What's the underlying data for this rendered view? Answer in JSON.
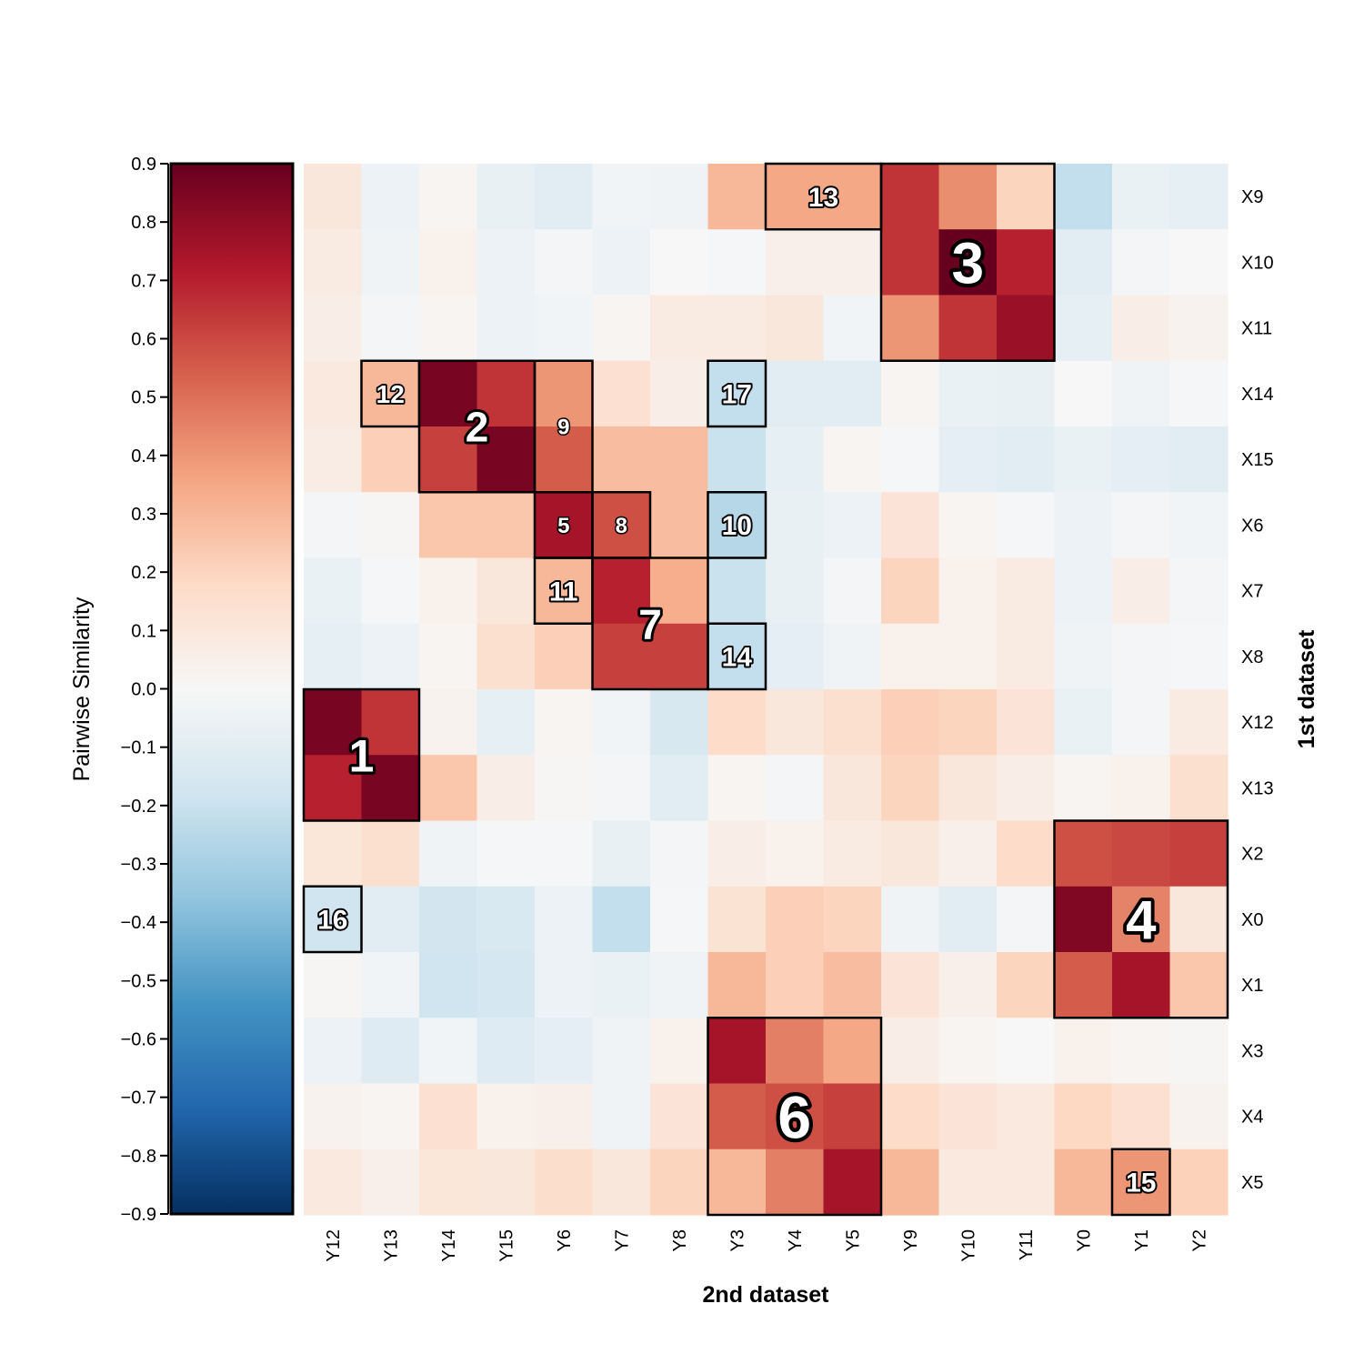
{
  "chart_data": {
    "type": "heatmap",
    "title": "",
    "xlabel": "2nd dataset",
    "ylabel": "1st dataset",
    "colorbar_label": "Pairwise Similarity",
    "vmin": -0.9,
    "vmax": 0.9,
    "colorbar_ticks": [
      "0.9",
      "0.8",
      "0.7",
      "0.6",
      "0.5",
      "0.4",
      "0.3",
      "0.2",
      "0.1",
      "0.0",
      "−0.1",
      "−0.2",
      "−0.3",
      "−0.4",
      "−0.5",
      "−0.6",
      "−0.7",
      "−0.8",
      "−0.9"
    ],
    "colors": {
      "scale": [
        "#053061",
        "#2166ac",
        "#4393c3",
        "#92c5de",
        "#d1e5f0",
        "#f7f7f7",
        "#fddbc7",
        "#f4a582",
        "#d6604d",
        "#b2182b",
        "#67001f"
      ]
    },
    "columns": [
      "Y12",
      "Y13",
      "Y14",
      "Y15",
      "Y6",
      "Y7",
      "Y8",
      "Y3",
      "Y4",
      "Y5",
      "Y9",
      "Y10",
      "Y11",
      "Y0",
      "Y1",
      "Y2"
    ],
    "rows": [
      "X9",
      "X10",
      "X11",
      "X14",
      "X15",
      "X6",
      "X7",
      "X8",
      "X12",
      "X13",
      "X2",
      "X0",
      "X1",
      "X3",
      "X4",
      "X5"
    ],
    "values": [
      [
        0.1,
        -0.05,
        0.02,
        -0.07,
        -0.1,
        -0.03,
        -0.04,
        0.3,
        0.35,
        0.35,
        0.65,
        0.42,
        0.2,
        -0.22,
        -0.06,
        -0.08
      ],
      [
        0.08,
        -0.04,
        0.04,
        -0.05,
        -0.02,
        -0.05,
        0.0,
        -0.01,
        0.05,
        0.05,
        0.65,
        0.9,
        0.7,
        -0.1,
        -0.02,
        0.0
      ],
      [
        0.06,
        -0.02,
        0.02,
        -0.05,
        -0.03,
        0.02,
        0.08,
        0.08,
        0.1,
        -0.03,
        0.4,
        0.65,
        0.78,
        -0.08,
        0.06,
        0.03
      ],
      [
        0.09,
        0.3,
        0.86,
        0.65,
        0.4,
        0.14,
        0.06,
        -0.22,
        -0.1,
        -0.1,
        0.02,
        -0.06,
        -0.07,
        0.0,
        -0.04,
        -0.01
      ],
      [
        0.07,
        0.22,
        0.62,
        0.86,
        0.55,
        0.28,
        0.28,
        -0.2,
        -0.08,
        0.02,
        -0.01,
        -0.09,
        -0.1,
        -0.06,
        -0.09,
        -0.1
      ],
      [
        -0.02,
        0.01,
        0.25,
        0.25,
        0.75,
        0.58,
        0.28,
        -0.26,
        -0.07,
        -0.05,
        0.12,
        0.02,
        -0.01,
        -0.05,
        -0.02,
        -0.03
      ],
      [
        -0.06,
        -0.01,
        0.04,
        0.1,
        0.3,
        0.7,
        0.33,
        -0.2,
        -0.07,
        -0.02,
        0.2,
        0.04,
        0.08,
        -0.05,
        0.06,
        -0.02
      ],
      [
        -0.08,
        -0.05,
        0.02,
        0.15,
        0.22,
        0.62,
        0.62,
        -0.22,
        -0.09,
        -0.04,
        0.04,
        0.04,
        0.08,
        -0.04,
        -0.02,
        -0.01
      ],
      [
        0.86,
        0.65,
        0.03,
        -0.08,
        0.02,
        -0.03,
        -0.15,
        0.17,
        0.1,
        0.15,
        0.22,
        0.2,
        0.12,
        -0.06,
        -0.02,
        0.08
      ],
      [
        0.7,
        0.86,
        0.25,
        0.06,
        0.01,
        -0.02,
        -0.1,
        0.02,
        -0.02,
        0.1,
        0.2,
        0.1,
        0.06,
        0.02,
        0.04,
        0.15
      ],
      [
        0.11,
        0.15,
        -0.04,
        -0.01,
        -0.01,
        -0.07,
        -0.02,
        0.06,
        0.04,
        0.08,
        0.1,
        0.05,
        0.17,
        0.58,
        0.6,
        0.62
      ],
      [
        -0.18,
        -0.1,
        -0.17,
        -0.14,
        -0.05,
        -0.22,
        -0.01,
        0.13,
        0.22,
        0.2,
        -0.04,
        -0.1,
        -0.02,
        0.84,
        0.45,
        0.1
      ],
      [
        0.01,
        -0.03,
        -0.18,
        -0.16,
        -0.05,
        -0.06,
        -0.04,
        0.3,
        0.22,
        0.28,
        0.12,
        0.05,
        0.2,
        0.55,
        0.75,
        0.25
      ],
      [
        -0.05,
        -0.12,
        -0.03,
        -0.12,
        -0.09,
        -0.04,
        0.04,
        0.75,
        0.46,
        0.35,
        0.06,
        0.02,
        0.0,
        0.04,
        0.02,
        0.01
      ],
      [
        0.03,
        0.02,
        0.14,
        0.04,
        0.05,
        -0.04,
        0.12,
        0.55,
        0.58,
        0.62,
        0.17,
        0.12,
        0.09,
        0.19,
        0.14,
        0.03
      ],
      [
        0.09,
        0.05,
        0.11,
        0.1,
        0.16,
        0.1,
        0.2,
        0.3,
        0.46,
        0.75,
        0.3,
        0.09,
        0.09,
        0.3,
        0.4,
        0.21
      ]
    ],
    "clusters": [
      {
        "label": "1",
        "r0": 8,
        "r1": 10,
        "c0": 0,
        "c1": 2,
        "size": 50
      },
      {
        "label": "2",
        "r0": 3,
        "r1": 5,
        "c0": 2,
        "c1": 4,
        "size": 46
      },
      {
        "label": "3",
        "r0": 0,
        "r1": 3,
        "c0": 10,
        "c1": 13,
        "size": 64
      },
      {
        "label": "4",
        "r0": 10,
        "r1": 13,
        "c0": 13,
        "c1": 16,
        "size": 60
      },
      {
        "label": "5",
        "r0": 5,
        "r1": 6,
        "c0": 4,
        "c1": 5,
        "size": 24
      },
      {
        "label": "6",
        "r0": 13,
        "r1": 16,
        "c0": 7,
        "c1": 10,
        "size": 66
      },
      {
        "label": "7",
        "r0": 6,
        "r1": 8,
        "c0": 5,
        "c1": 7,
        "size": 46
      },
      {
        "label": "8",
        "r0": 5,
        "r1": 6,
        "c0": 5,
        "c1": 6,
        "size": 24
      },
      {
        "label": "9",
        "r0": 3,
        "r1": 5,
        "c0": 4,
        "c1": 5,
        "size": 24
      },
      {
        "label": "10",
        "r0": 5,
        "r1": 6,
        "c0": 7,
        "c1": 8,
        "size": 30
      },
      {
        "label": "11",
        "r0": 6,
        "r1": 7,
        "c0": 4,
        "c1": 5,
        "size": 30
      },
      {
        "label": "12",
        "r0": 3,
        "r1": 4,
        "c0": 1,
        "c1": 2,
        "size": 28
      },
      {
        "label": "13",
        "r0": 0,
        "r1": 1,
        "c0": 8,
        "c1": 10,
        "size": 30
      },
      {
        "label": "14",
        "r0": 7,
        "r1": 8,
        "c0": 7,
        "c1": 8,
        "size": 30
      },
      {
        "label": "15",
        "r0": 15,
        "r1": 16,
        "c0": 14,
        "c1": 15,
        "size": 30
      },
      {
        "label": "16",
        "r0": 11,
        "r1": 12,
        "c0": 0,
        "c1": 1,
        "size": 30
      },
      {
        "label": "17",
        "r0": 3,
        "r1": 4,
        "c0": 7,
        "c1": 8,
        "size": 30
      }
    ]
  }
}
